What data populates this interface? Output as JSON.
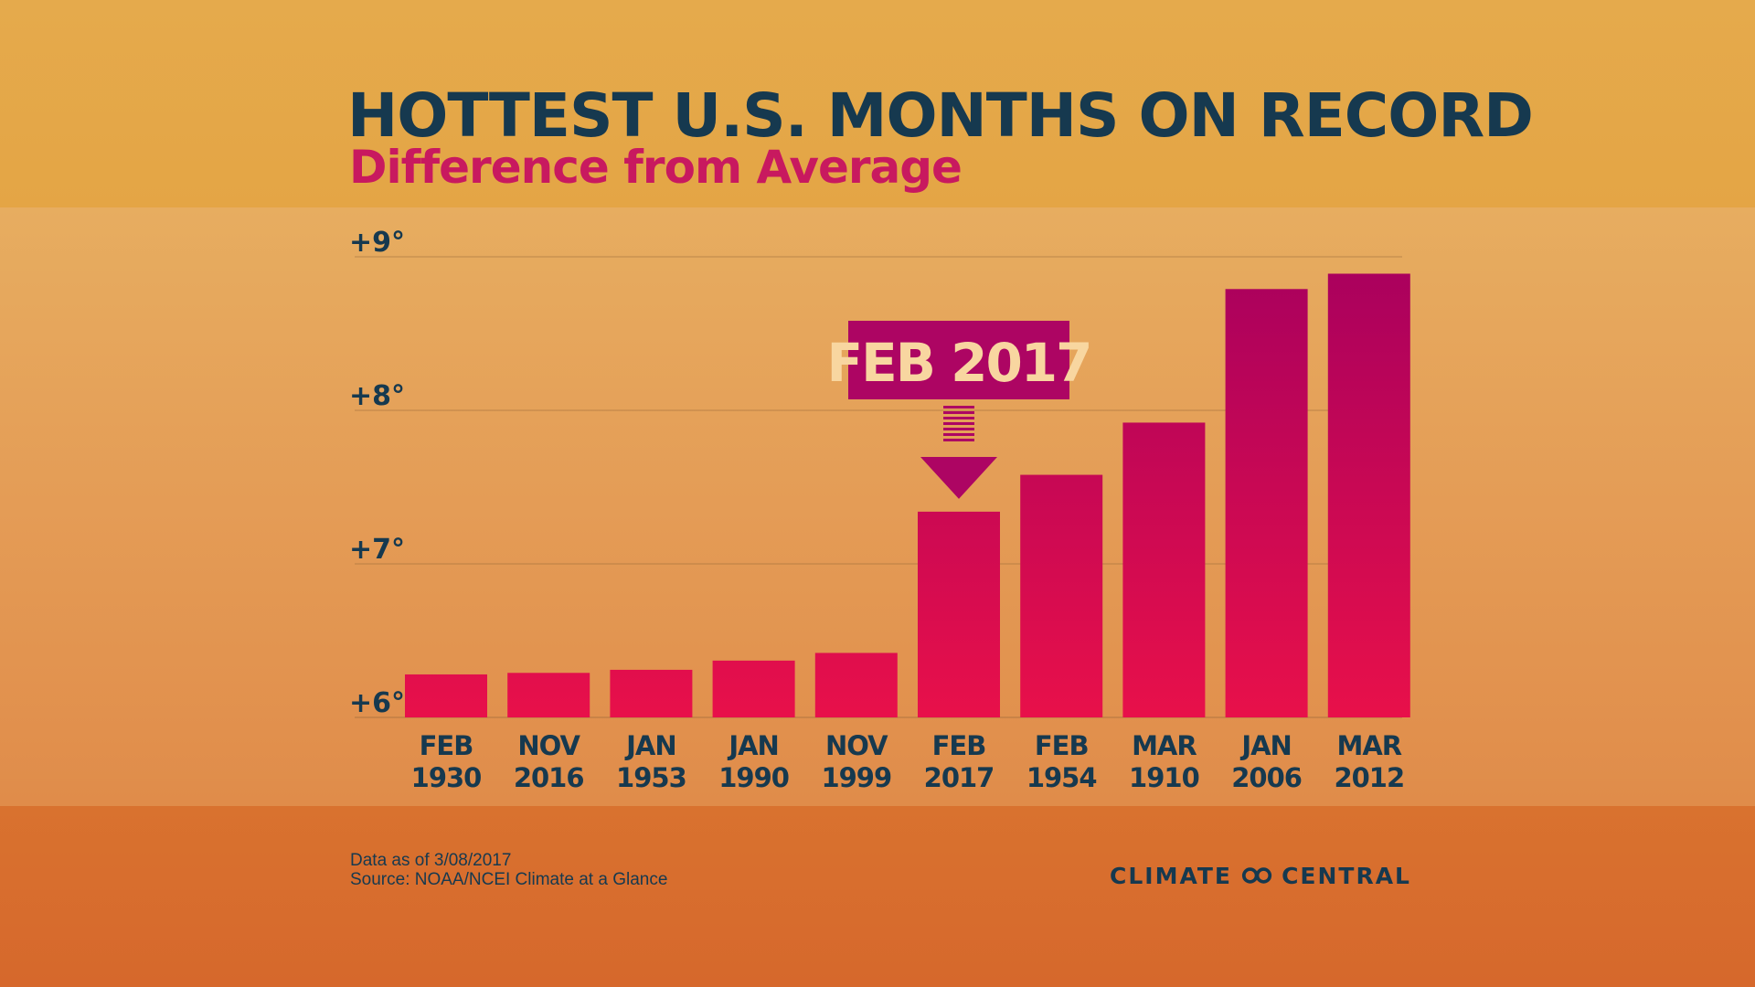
{
  "header": {
    "title": "HOTTEST U.S. MONTHS ON RECORD",
    "subtitle": "Difference from Average"
  },
  "chart_data": {
    "type": "bar",
    "title": "HOTTEST U.S. MONTHS ON RECORD",
    "subtitle": "Difference from Average",
    "categories": [
      {
        "month": "FEB",
        "year": "1930"
      },
      {
        "month": "NOV",
        "year": "2016"
      },
      {
        "month": "JAN",
        "year": "1953"
      },
      {
        "month": "JAN",
        "year": "1990"
      },
      {
        "month": "NOV",
        "year": "1999"
      },
      {
        "month": "FEB",
        "year": "2017"
      },
      {
        "month": "FEB",
        "year": "1954"
      },
      {
        "month": "MAR",
        "year": "1910"
      },
      {
        "month": "JAN",
        "year": "2006"
      },
      {
        "month": "MAR",
        "year": "2012"
      }
    ],
    "values": [
      6.28,
      6.29,
      6.31,
      6.37,
      6.42,
      7.34,
      7.58,
      7.92,
      8.79,
      8.89
    ],
    "ylim": [
      6,
      9
    ],
    "yticks": [
      {
        "value": 6,
        "label": "+6°"
      },
      {
        "value": 7,
        "label": "+7°"
      },
      {
        "value": 8,
        "label": "+8°"
      },
      {
        "value": 9,
        "label": "+9°"
      }
    ],
    "grid": true,
    "highlight": {
      "index": 5,
      "label": "FEB 2017"
    },
    "colors": {
      "bar_low": "#e8104a",
      "bar_high": "#a8005e",
      "callout": "#ad0563",
      "axis_text": "#16394f"
    }
  },
  "footer": {
    "data_note": "Data as of 3/08/2017",
    "source": "Source: NOAA/NCEI Climate at a Glance",
    "logo_left": "CLIMATE",
    "logo_right": "CENTRAL"
  }
}
